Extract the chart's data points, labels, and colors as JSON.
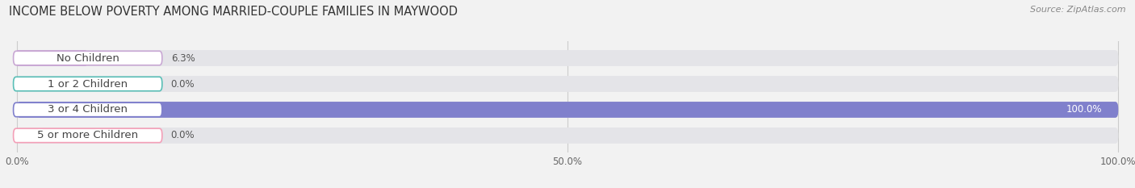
{
  "title": "INCOME BELOW POVERTY AMONG MARRIED-COUPLE FAMILIES IN MAYWOOD",
  "source": "Source: ZipAtlas.com",
  "categories": [
    "No Children",
    "1 or 2 Children",
    "3 or 4 Children",
    "5 or more Children"
  ],
  "values": [
    6.3,
    0.0,
    100.0,
    0.0
  ],
  "bar_colors": [
    "#c9a8d4",
    "#5abfb7",
    "#8080cc",
    "#f4a0b8"
  ],
  "xlim": [
    0,
    100
  ],
  "xticks": [
    0,
    50,
    100
  ],
  "xtick_labels": [
    "0.0%",
    "50.0%",
    "100.0%"
  ],
  "bg_color": "#f2f2f2",
  "bar_bg_color": "#e4e4e8",
  "title_fontsize": 10.5,
  "tick_fontsize": 8.5,
  "label_fontsize": 9.5,
  "value_fontsize": 8.5
}
